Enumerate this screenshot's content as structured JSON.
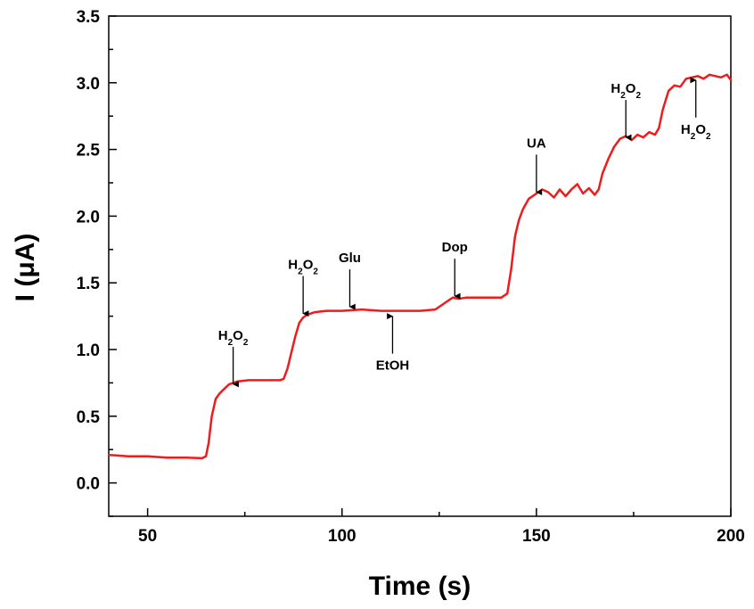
{
  "chart_data": {
    "type": "line",
    "xlabel": "Time (s)",
    "ylabel": "I (μA)",
    "xlim": [
      40,
      200
    ],
    "ylim": [
      -0.25,
      3.5
    ],
    "xticks": [
      "50",
      "100",
      "150",
      "200"
    ],
    "xtick_values": [
      50,
      100,
      150,
      200
    ],
    "yticks": [
      "0.0",
      "0.5",
      "1.0",
      "1.5",
      "2.0",
      "2.5",
      "3.0",
      "3.5"
    ],
    "ytick_values": [
      0,
      0.5,
      1.0,
      1.5,
      2.0,
      2.5,
      3.0,
      3.5
    ],
    "grid": false,
    "line_color": "#ee1c1c",
    "series": [
      {
        "x": [
          40,
          45,
          50,
          55,
          60,
          64,
          65,
          65.7,
          66.5,
          67.5,
          68.5,
          69.5,
          71,
          73,
          76,
          80,
          84,
          85,
          86,
          87,
          88,
          89,
          90,
          91,
          93,
          96,
          100,
          105,
          110,
          115,
          120,
          124,
          125.5,
          127,
          128.5,
          130,
          132,
          135,
          138,
          141,
          142.5,
          143.5,
          144.5,
          145.5,
          146.5,
          148,
          150,
          151.5,
          153,
          154.5,
          156,
          157.5,
          159,
          160.5,
          162,
          163.5,
          165,
          166,
          167,
          168.5,
          170,
          171.5,
          173,
          174.5,
          176,
          177.5,
          179,
          180.5,
          181.5,
          182.5,
          184,
          185.5,
          187,
          188.5,
          190,
          191.5,
          193,
          194.5,
          196,
          197.5,
          199,
          200
        ],
        "y": [
          0.21,
          0.2,
          0.2,
          0.19,
          0.19,
          0.185,
          0.2,
          0.3,
          0.5,
          0.63,
          0.67,
          0.7,
          0.74,
          0.76,
          0.77,
          0.77,
          0.77,
          0.78,
          0.86,
          0.98,
          1.1,
          1.2,
          1.24,
          1.26,
          1.28,
          1.29,
          1.29,
          1.3,
          1.29,
          1.29,
          1.29,
          1.3,
          1.33,
          1.36,
          1.39,
          1.38,
          1.39,
          1.39,
          1.39,
          1.39,
          1.42,
          1.6,
          1.85,
          1.97,
          2.05,
          2.13,
          2.17,
          2.2,
          2.18,
          2.14,
          2.2,
          2.15,
          2.2,
          2.24,
          2.17,
          2.21,
          2.16,
          2.2,
          2.32,
          2.43,
          2.52,
          2.58,
          2.6,
          2.57,
          2.61,
          2.59,
          2.63,
          2.61,
          2.66,
          2.8,
          2.94,
          2.98,
          2.97,
          3.03,
          3.04,
          3.05,
          3.03,
          3.06,
          3.05,
          3.04,
          3.06,
          3.02
        ]
      }
    ],
    "annotations": [
      {
        "label": "H",
        "sub": "2",
        "label2": "O",
        "sub2": "2",
        "x": 72,
        "y_tip": 0.72,
        "direction": "down"
      },
      {
        "label": "H",
        "sub": "2",
        "label2": "O",
        "sub2": "2",
        "x": 90,
        "y_tip": 1.25,
        "direction": "down"
      },
      {
        "label": "Glu",
        "x": 102,
        "y_tip": 1.3,
        "direction": "down"
      },
      {
        "label": "EtOH",
        "x": 113,
        "y_tip": 1.27,
        "direction": "up"
      },
      {
        "label": "Dop",
        "x": 129,
        "y_tip": 1.38,
        "direction": "down"
      },
      {
        "label": "UA",
        "x": 150,
        "y_tip": 2.16,
        "direction": "down"
      },
      {
        "label": "H",
        "sub": "2",
        "label2": "O",
        "sub2": "2",
        "x": 173,
        "y_tip": 2.57,
        "direction": "down"
      },
      {
        "label": "H",
        "sub": "2",
        "label2": "O",
        "sub2": "2",
        "x": 191,
        "y_tip": 3.04,
        "direction": "up"
      }
    ]
  }
}
